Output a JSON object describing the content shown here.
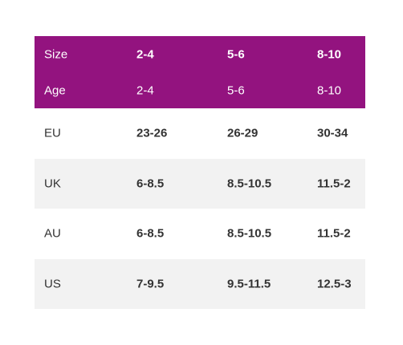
{
  "header": {
    "rows": [
      [
        "Size",
        "2-4",
        "5-6",
        "8-10"
      ],
      [
        "Age",
        "2-4",
        "5-6",
        "8-10"
      ]
    ]
  },
  "table": {
    "rows": [
      [
        "EU",
        "23-26",
        "26-29",
        "30-34"
      ],
      [
        "UK",
        "6-8.5",
        "8.5-10.5",
        "11.5-2"
      ],
      [
        "AU",
        "6-8.5",
        "8.5-10.5",
        "11.5-2"
      ],
      [
        "US",
        "7-9.5",
        "9.5-11.5",
        "12.5-3"
      ]
    ]
  }
}
